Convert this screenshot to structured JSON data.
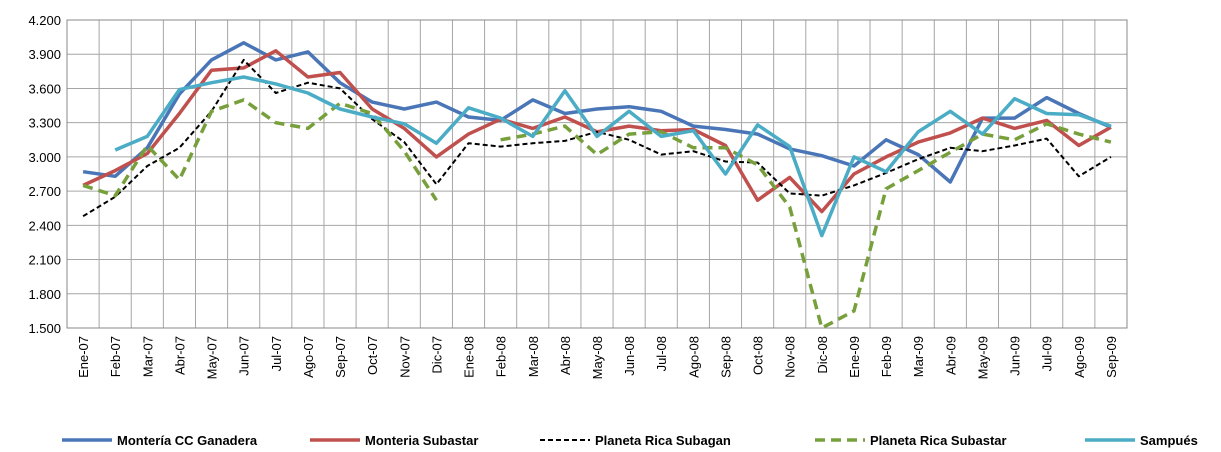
{
  "chart_data": {
    "type": "line",
    "categories": [
      "Ene-07",
      "Feb-07",
      "Mar-07",
      "Abr-07",
      "May-07",
      "Jun-07",
      "Jul-07",
      "Ago-07",
      "Sep-07",
      "Oct-07",
      "Nov-07",
      "Dic-07",
      "Ene-08",
      "Feb-08",
      "Mar-08",
      "Abr-08",
      "May-08",
      "Jun-08",
      "Jul-08",
      "Ago-08",
      "Sep-08",
      "Oct-08",
      "Nov-08",
      "Dic-08",
      "Ene-09",
      "Feb-09",
      "Mar-09",
      "Abr-09",
      "May-09",
      "Jun-09",
      "Jul-09",
      "Ago-09",
      "Sep-09"
    ],
    "series": [
      {
        "name": "Montería CC Ganadera",
        "color": "#4a76b8",
        "dashed": false,
        "values": [
          2870,
          2830,
          3080,
          3550,
          3850,
          4000,
          3850,
          3920,
          3650,
          3480,
          3420,
          3480,
          3350,
          3320,
          3500,
          3380,
          3420,
          3440,
          3400,
          3270,
          3240,
          3200,
          3070,
          3010,
          2920,
          3150,
          3020,
          2780,
          3340,
          3340,
          3520,
          3380,
          3260
        ]
      },
      {
        "name": "Monteria Subastar",
        "color": "#c0504d",
        "dashed": false,
        "values": [
          2750,
          2880,
          3030,
          3380,
          3760,
          3780,
          3930,
          3700,
          3740,
          3420,
          3250,
          3000,
          3200,
          3330,
          3250,
          3350,
          3220,
          3270,
          3230,
          3240,
          3100,
          2620,
          2820,
          2520,
          2850,
          3000,
          3130,
          3210,
          3340,
          3250,
          3320,
          3100,
          3260
        ]
      },
      {
        "name": "Planeta Rica  Subagan",
        "color": "#000000",
        "dashed": true,
        "values": [
          2480,
          2650,
          2920,
          3080,
          3400,
          3850,
          3560,
          3650,
          3600,
          3330,
          3130,
          2760,
          3120,
          3090,
          3120,
          3140,
          3220,
          3150,
          3020,
          3050,
          2960,
          2950,
          2680,
          2660,
          2750,
          2860,
          2980,
          3080,
          3050,
          3100,
          3160,
          2830,
          3000
        ]
      },
      {
        "name": "Planeta Rica  Subastar",
        "color": "#77a03c",
        "dashed": true,
        "values": [
          2750,
          2660,
          3100,
          2800,
          3400,
          3500,
          3300,
          3250,
          3470,
          3380,
          3050,
          2620,
          null,
          3150,
          3200,
          3270,
          3020,
          3200,
          3220,
          3080,
          3080,
          2930,
          2560,
          1500,
          1650,
          2720,
          2880,
          3040,
          3200,
          3150,
          3290,
          3200,
          3130
        ]
      },
      {
        "name": "Sampués",
        "color": "#4bacc6",
        "dashed": false,
        "values": [
          null,
          3060,
          3180,
          3590,
          3650,
          3700,
          3640,
          3560,
          3420,
          3350,
          3290,
          3120,
          3430,
          3340,
          3180,
          3580,
          3180,
          3400,
          3180,
          3230,
          2850,
          3280,
          3090,
          2310,
          3000,
          2870,
          3220,
          3400,
          3200,
          3510,
          3380,
          3370,
          3270
        ]
      }
    ],
    "ylim": [
      1500,
      4200
    ],
    "yticks": [
      {
        "value": 1500,
        "label": "1.500"
      },
      {
        "value": 1800,
        "label": "1.800"
      },
      {
        "value": 2100,
        "label": "2.100"
      },
      {
        "value": 2400,
        "label": "2.400"
      },
      {
        "value": 2700,
        "label": "2.700"
      },
      {
        "value": 3000,
        "label": "3.000"
      },
      {
        "value": 3300,
        "label": "3.300"
      },
      {
        "value": 3600,
        "label": "3.600"
      },
      {
        "value": 3900,
        "label": "3.900"
      },
      {
        "value": 4200,
        "label": "4.200"
      }
    ],
    "grid": true,
    "legend": "bottom"
  }
}
